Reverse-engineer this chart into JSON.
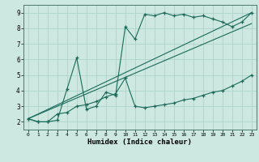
{
  "xlabel": "Humidex (Indice chaleur)",
  "xlim": [
    -0.5,
    23.5
  ],
  "ylim": [
    1.5,
    9.5
  ],
  "xticks": [
    0,
    1,
    2,
    3,
    4,
    5,
    6,
    7,
    8,
    9,
    10,
    11,
    12,
    13,
    14,
    15,
    16,
    17,
    18,
    19,
    20,
    21,
    22,
    23
  ],
  "yticks": [
    2,
    3,
    4,
    5,
    6,
    7,
    8,
    9
  ],
  "bg_color": "#cce8e0",
  "grid_color": "#a8d0c8",
  "line_color": "#1a6b5a",
  "line1_x": [
    0,
    1,
    2,
    3,
    4,
    5,
    6,
    7,
    8,
    9,
    10,
    11,
    12,
    13,
    14,
    15,
    16,
    17,
    18,
    19,
    20,
    21,
    22,
    23
  ],
  "line1_y": [
    2.2,
    2.0,
    2.0,
    2.1,
    4.1,
    6.1,
    2.8,
    3.0,
    3.9,
    3.7,
    8.1,
    7.3,
    8.9,
    8.8,
    9.0,
    8.8,
    8.9,
    8.7,
    8.8,
    8.6,
    8.4,
    8.1,
    8.4,
    9.0
  ],
  "line2_x": [
    0,
    1,
    2,
    3,
    4,
    5,
    6,
    7,
    8,
    9,
    10,
    11,
    12,
    13,
    14,
    15,
    16,
    17,
    18,
    19,
    20,
    21,
    22,
    23
  ],
  "line2_y": [
    2.2,
    2.0,
    2.0,
    2.5,
    2.6,
    3.0,
    3.1,
    3.3,
    3.6,
    3.8,
    4.8,
    3.0,
    2.9,
    3.0,
    3.1,
    3.2,
    3.4,
    3.5,
    3.7,
    3.9,
    4.0,
    4.3,
    4.6,
    5.0
  ],
  "line3_x": [
    0,
    23
  ],
  "line3_y": [
    2.2,
    9.0
  ],
  "line4_x": [
    0,
    23
  ],
  "line4_y": [
    2.2,
    8.3
  ]
}
